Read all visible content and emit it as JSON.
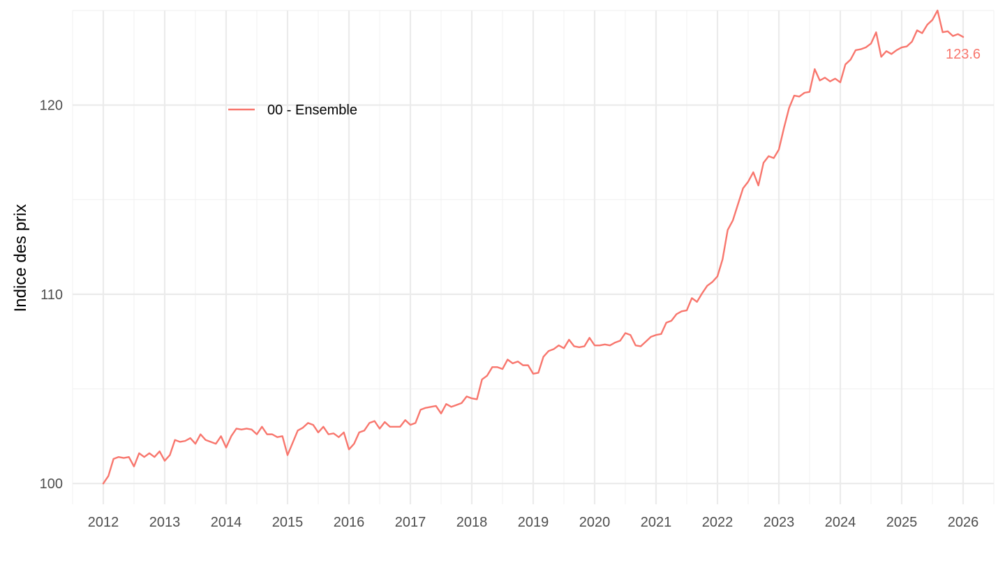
{
  "chart_data": {
    "type": "line",
    "ylabel": "Indice des prix",
    "xlabel": "",
    "y_ticks": [
      100,
      110,
      120
    ],
    "x_ticks": [
      "2012",
      "2013",
      "2014",
      "2015",
      "2016",
      "2017",
      "2018",
      "2019",
      "2020",
      "2021",
      "2022",
      "2023",
      "2024",
      "2025",
      "2026"
    ],
    "xlim": [
      "2011-07-01",
      "2026-07-01"
    ],
    "ylim": [
      98.9,
      125
    ],
    "grid": true,
    "legend_position": "top-left",
    "end_label": "123.6",
    "series": [
      {
        "name": "00 - Ensemble",
        "color": "#f8766d",
        "start": "2012-01",
        "frequency": "monthly",
        "values": [
          100.0,
          100.4,
          101.3,
          101.4,
          101.35,
          101.4,
          100.9,
          101.6,
          101.4,
          101.6,
          101.4,
          101.7,
          101.2,
          101.5,
          102.3,
          102.2,
          102.25,
          102.4,
          102.1,
          102.6,
          102.3,
          102.2,
          102.1,
          102.5,
          101.9,
          102.5,
          102.9,
          102.85,
          102.9,
          102.85,
          102.6,
          103.0,
          102.6,
          102.6,
          102.45,
          102.5,
          101.5,
          102.15,
          102.8,
          102.95,
          103.2,
          103.1,
          102.7,
          103.0,
          102.6,
          102.65,
          102.45,
          102.7,
          101.8,
          102.1,
          102.7,
          102.8,
          103.2,
          103.3,
          102.9,
          103.25,
          103.0,
          103.0,
          103.0,
          103.35,
          103.1,
          103.2,
          103.9,
          104.0,
          104.05,
          104.1,
          103.7,
          104.2,
          104.05,
          104.15,
          104.25,
          104.6,
          104.5,
          104.45,
          105.5,
          105.7,
          106.15,
          106.15,
          106.05,
          106.55,
          106.35,
          106.45,
          106.25,
          106.25,
          105.8,
          105.85,
          106.7,
          107.0,
          107.1,
          107.3,
          107.15,
          107.6,
          107.25,
          107.2,
          107.25,
          107.7,
          107.3,
          107.3,
          107.35,
          107.3,
          107.45,
          107.55,
          107.95,
          107.85,
          107.3,
          107.25,
          107.5,
          107.75,
          107.85,
          107.9,
          108.5,
          108.6,
          108.95,
          109.1,
          109.15,
          109.8,
          109.6,
          110.05,
          110.45,
          110.65,
          110.95,
          111.85,
          113.4,
          113.9,
          114.75,
          115.6,
          115.95,
          116.45,
          115.75,
          116.95,
          117.3,
          117.2,
          117.65,
          118.8,
          119.85,
          120.5,
          120.45,
          120.65,
          120.7,
          121.9,
          121.3,
          121.45,
          121.25,
          121.4,
          121.2,
          122.15,
          122.4,
          122.9,
          122.95,
          123.05,
          123.25,
          123.85,
          122.55,
          122.85,
          122.7,
          122.9,
          123.05,
          123.1,
          123.35,
          123.95,
          123.8,
          124.25,
          124.5,
          125.0,
          123.85,
          123.9,
          123.65,
          123.75,
          123.6
        ]
      }
    ]
  }
}
